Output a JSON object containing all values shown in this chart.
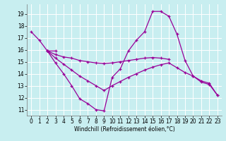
{
  "xlabel": "Windchill (Refroidissement éolien,°C)",
  "xlim": [
    -0.5,
    23.5
  ],
  "ylim": [
    10.5,
    19.8
  ],
  "yticks": [
    11,
    12,
    13,
    14,
    15,
    16,
    17,
    18,
    19
  ],
  "xticks": [
    0,
    1,
    2,
    3,
    4,
    5,
    6,
    7,
    8,
    9,
    10,
    11,
    12,
    13,
    14,
    15,
    16,
    17,
    18,
    19,
    20,
    21,
    22,
    23
  ],
  "bg_color": "#c8eef0",
  "grid_color": "#ffffff",
  "line_color": "#990099",
  "line1_x": [
    0,
    1,
    2,
    3
  ],
  "line1_y": [
    17.5,
    16.8,
    15.9,
    15.9
  ],
  "line2_x": [
    2,
    3,
    4,
    5,
    6,
    7,
    8,
    9,
    10,
    11,
    12,
    13,
    14,
    15,
    16,
    17,
    18,
    19,
    20,
    21,
    22,
    23
  ],
  "line2_y": [
    15.9,
    14.9,
    14.0,
    13.0,
    11.9,
    11.5,
    11.0,
    10.9,
    13.7,
    14.4,
    15.9,
    16.8,
    17.5,
    19.2,
    19.2,
    18.8,
    17.3,
    15.1,
    13.8,
    13.3,
    13.1,
    12.2
  ],
  "line3_x": [
    2,
    3,
    4,
    5,
    6,
    7,
    8,
    9,
    10,
    11,
    12,
    13,
    14,
    15,
    16,
    17
  ],
  "line3_y": [
    15.9,
    15.6,
    15.4,
    15.3,
    15.1,
    15.0,
    14.9,
    14.85,
    14.9,
    15.0,
    15.1,
    15.2,
    15.3,
    15.35,
    15.3,
    15.2
  ],
  "line4_x": [
    2,
    3,
    4,
    5,
    6,
    7,
    8,
    9,
    10,
    11,
    12,
    13,
    14,
    15,
    16,
    17,
    18,
    19,
    20,
    21,
    22,
    23
  ],
  "line4_y": [
    15.9,
    15.3,
    14.8,
    14.3,
    13.8,
    13.4,
    13.0,
    12.6,
    13.0,
    13.35,
    13.7,
    14.0,
    14.3,
    14.55,
    14.75,
    14.9,
    14.5,
    14.1,
    13.8,
    13.4,
    13.2,
    12.2
  ]
}
